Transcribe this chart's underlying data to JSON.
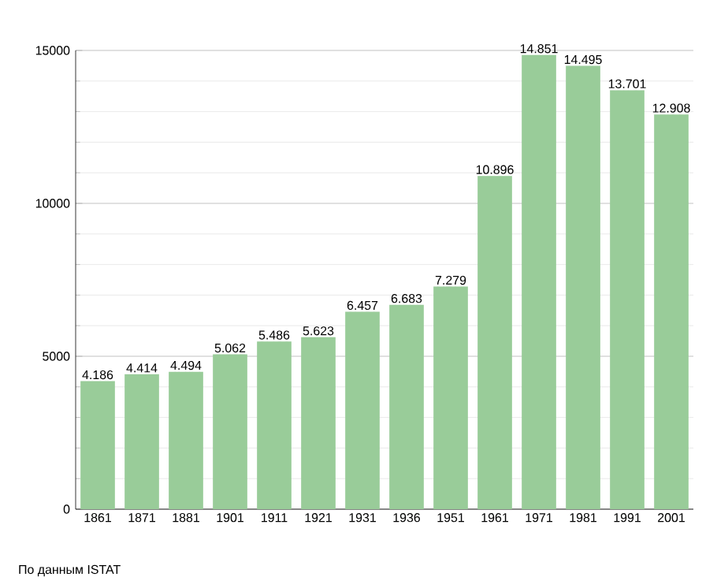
{
  "chart_data": {
    "type": "bar",
    "categories": [
      "1861",
      "1871",
      "1881",
      "1901",
      "1911",
      "1921",
      "1931",
      "1936",
      "1951",
      "1961",
      "1971",
      "1981",
      "1991",
      "2001"
    ],
    "values": [
      4186,
      4414,
      4494,
      5062,
      5486,
      5623,
      6457,
      6683,
      7279,
      10896,
      14851,
      14495,
      13701,
      12908
    ],
    "value_labels": [
      "4.186",
      "4.414",
      "4.494",
      "5.062",
      "5.486",
      "5.623",
      "6.457",
      "6.683",
      "7.279",
      "10.896",
      "14.851",
      "14.495",
      "13.701",
      "12.908"
    ],
    "color": "#99cc99",
    "ylim": [
      0,
      15000
    ],
    "yticks": [
      0,
      5000,
      10000,
      15000
    ],
    "grid": "y",
    "annotations": [
      "По данным ISTAT"
    ]
  }
}
